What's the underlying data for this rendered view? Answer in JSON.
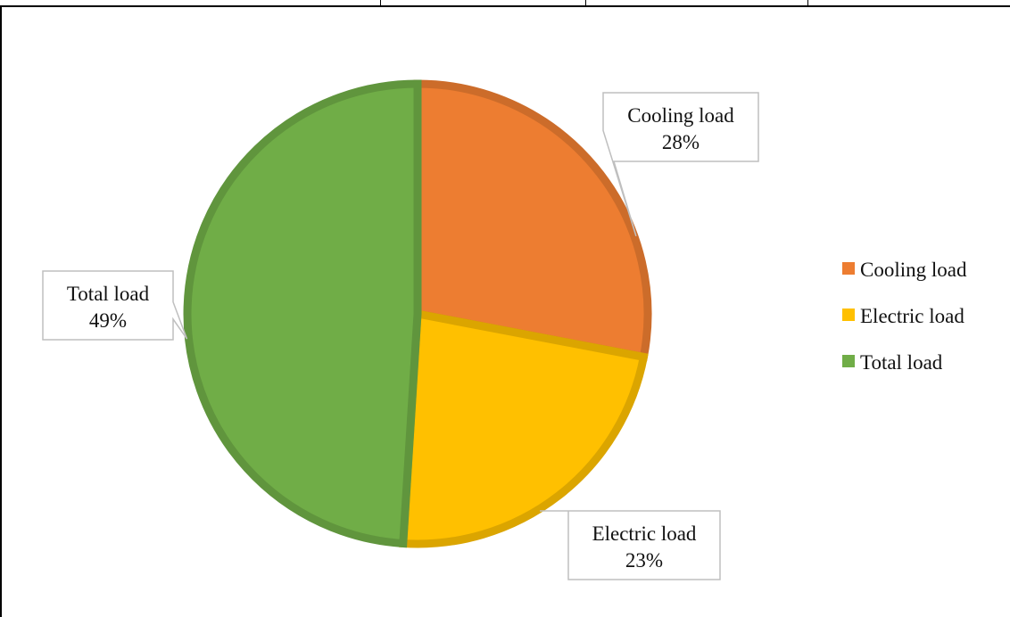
{
  "chart_data": {
    "type": "pie",
    "title": "",
    "slices": [
      {
        "label": "Cooling load",
        "value": 28,
        "value_label": "28%",
        "color": "#ED7D31"
      },
      {
        "label": "Electric load",
        "value": 23,
        "value_label": "23%",
        "color": "#FFC000"
      },
      {
        "label": "Total load",
        "value": 49,
        "value_label": "49%",
        "color": "#70AD47"
      }
    ],
    "legend": {
      "placement": "right",
      "entries": [
        "Cooling load",
        "Electric load",
        "Total load"
      ]
    },
    "data_labels": "callout boxes with category name and percentage"
  }
}
